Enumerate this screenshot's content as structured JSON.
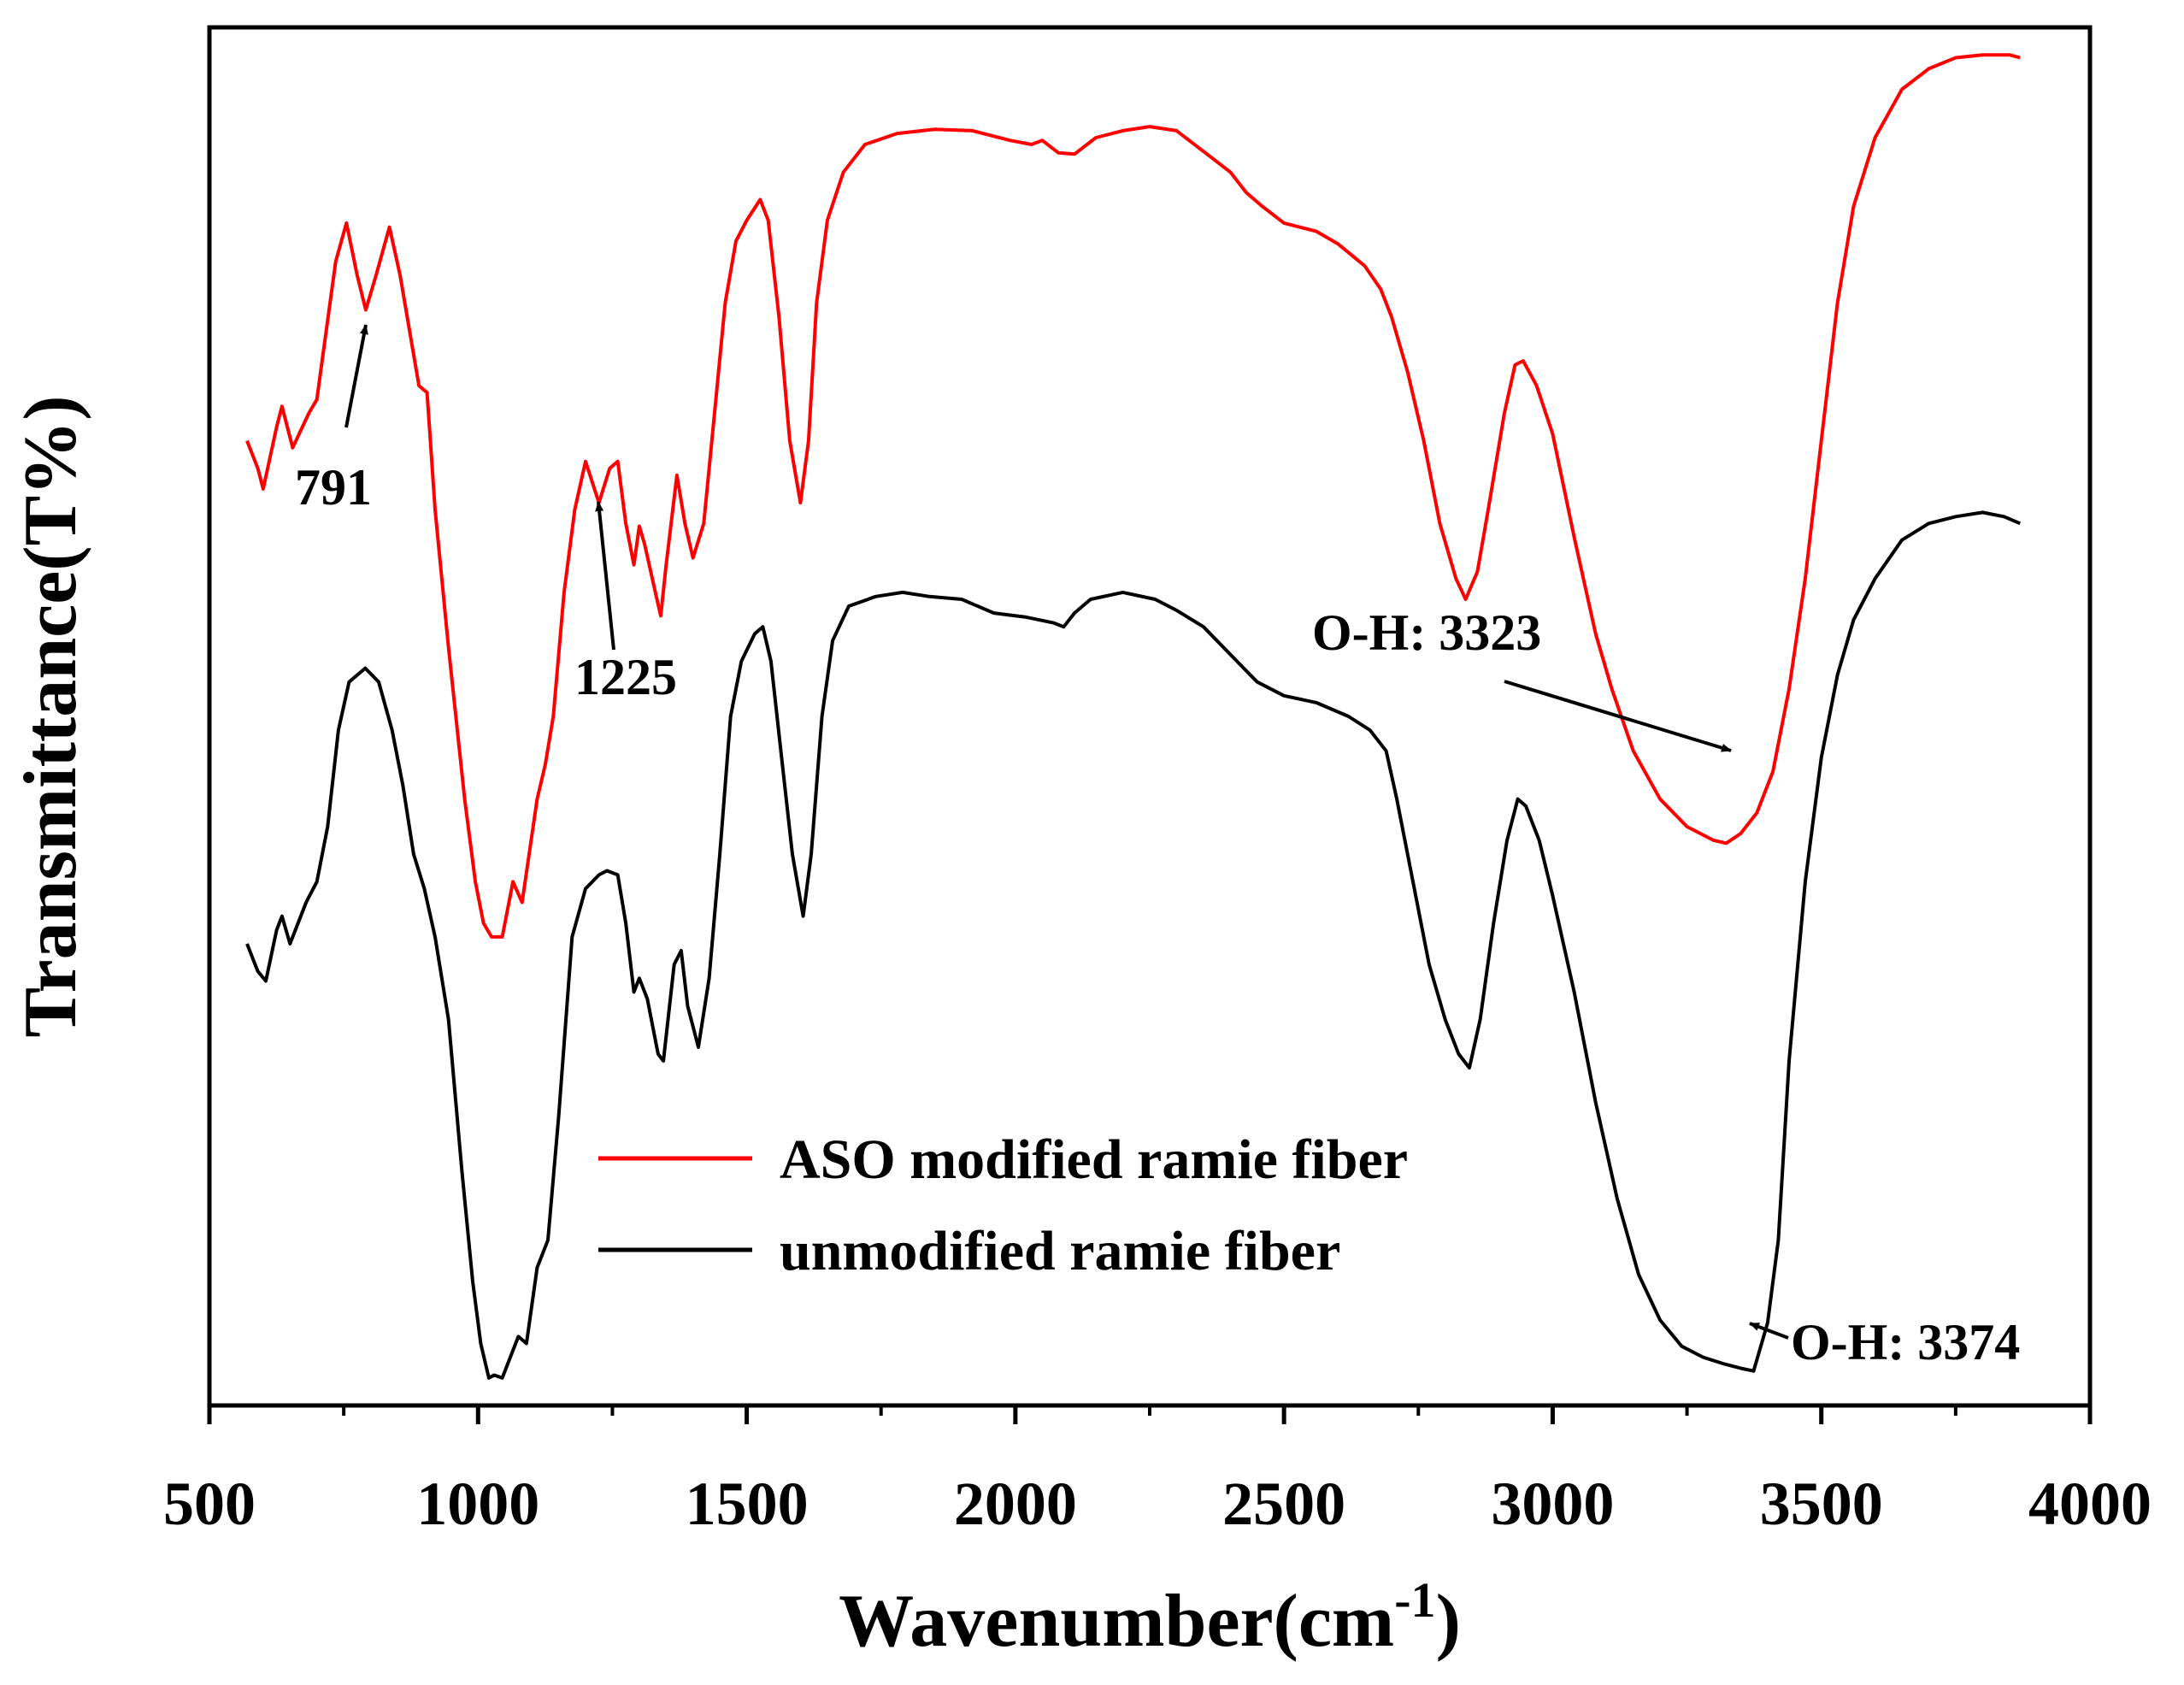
{
  "chart_data": {
    "type": "line",
    "title": "",
    "xlabel": "Wavenumber(cm",
    "xlabel_sup": "-1",
    "xlabel_close": ")",
    "ylabel": "Transmittance(T%)",
    "xlim": [
      500,
      4000
    ],
    "ylim": [
      0,
      100
    ],
    "y_ticks_visible": false,
    "grid": false,
    "x_ticks": [
      500,
      1000,
      1500,
      2000,
      2500,
      3000,
      3500,
      4000
    ],
    "x_tick_labels": [
      "500",
      "1000",
      "1500",
      "2000",
      "2500",
      "3000",
      "3500",
      "4000"
    ],
    "legend": {
      "placement": "lower-center"
    },
    "series": [
      {
        "name": "ASO modified ramie fiber",
        "color": "#ff0000",
        "points": [
          [
            570,
            70
          ],
          [
            590,
            68
          ],
          [
            600,
            66.5
          ],
          [
            625,
            71
          ],
          [
            635,
            72.5
          ],
          [
            655,
            69.5
          ],
          [
            685,
            72
          ],
          [
            700,
            73
          ],
          [
            735,
            83
          ],
          [
            755,
            85.8
          ],
          [
            775,
            82
          ],
          [
            791,
            79.5
          ],
          [
            810,
            82
          ],
          [
            835,
            85.5
          ],
          [
            855,
            82
          ],
          [
            890,
            74
          ],
          [
            905,
            73.5
          ],
          [
            920,
            65
          ],
          [
            945,
            55
          ],
          [
            975,
            44
          ],
          [
            995,
            38
          ],
          [
            1010,
            35
          ],
          [
            1025,
            34
          ],
          [
            1045,
            34
          ],
          [
            1065,
            38
          ],
          [
            1082,
            36.5
          ],
          [
            1110,
            44
          ],
          [
            1125,
            46.5
          ],
          [
            1140,
            50
          ],
          [
            1160,
            59
          ],
          [
            1180,
            65
          ],
          [
            1200,
            68.5
          ],
          [
            1225,
            65.5
          ],
          [
            1245,
            68
          ],
          [
            1260,
            68.5
          ],
          [
            1275,
            64
          ],
          [
            1290,
            61
          ],
          [
            1300,
            63.8
          ],
          [
            1310,
            62.5
          ],
          [
            1330,
            59
          ],
          [
            1340,
            57.3
          ],
          [
            1350,
            61
          ],
          [
            1370,
            67.5
          ],
          [
            1385,
            64
          ],
          [
            1400,
            61.5
          ],
          [
            1420,
            64
          ],
          [
            1440,
            72
          ],
          [
            1460,
            80
          ],
          [
            1480,
            84.5
          ],
          [
            1500,
            86
          ],
          [
            1525,
            87.5
          ],
          [
            1540,
            86
          ],
          [
            1560,
            79
          ],
          [
            1580,
            70
          ],
          [
            1600,
            65.5
          ],
          [
            1615,
            70
          ],
          [
            1630,
            80
          ],
          [
            1650,
            86
          ],
          [
            1680,
            89.5
          ],
          [
            1720,
            91.5
          ],
          [
            1780,
            92.3
          ],
          [
            1850,
            92.6
          ],
          [
            1920,
            92.5
          ],
          [
            1990,
            91.8
          ],
          [
            2030,
            91.5
          ],
          [
            2050,
            91.8
          ],
          [
            2080,
            90.9
          ],
          [
            2110,
            90.8
          ],
          [
            2150,
            92
          ],
          [
            2200,
            92.5
          ],
          [
            2250,
            92.8
          ],
          [
            2300,
            92.5
          ],
          [
            2350,
            91
          ],
          [
            2400,
            89.5
          ],
          [
            2430,
            88
          ],
          [
            2460,
            87
          ],
          [
            2500,
            85.8
          ],
          [
            2560,
            85.2
          ],
          [
            2600,
            84.3
          ],
          [
            2650,
            82.7
          ],
          [
            2680,
            81
          ],
          [
            2700,
            79
          ],
          [
            2730,
            75
          ],
          [
            2760,
            70
          ],
          [
            2790,
            64
          ],
          [
            2820,
            60
          ],
          [
            2838,
            58.5
          ],
          [
            2860,
            60.5
          ],
          [
            2880,
            65
          ],
          [
            2910,
            72
          ],
          [
            2930,
            75.5
          ],
          [
            2945,
            75.8
          ],
          [
            2970,
            74
          ],
          [
            3000,
            70.5
          ],
          [
            3040,
            63
          ],
          [
            3080,
            56
          ],
          [
            3110,
            52
          ],
          [
            3150,
            47.5
          ],
          [
            3200,
            44
          ],
          [
            3250,
            42
          ],
          [
            3300,
            41
          ],
          [
            3323,
            40.8
          ],
          [
            3350,
            41.5
          ],
          [
            3380,
            43
          ],
          [
            3410,
            46
          ],
          [
            3440,
            52
          ],
          [
            3470,
            60
          ],
          [
            3500,
            70
          ],
          [
            3530,
            80
          ],
          [
            3560,
            87
          ],
          [
            3600,
            92
          ],
          [
            3650,
            95.5
          ],
          [
            3700,
            97
          ],
          [
            3750,
            97.8
          ],
          [
            3800,
            98
          ],
          [
            3850,
            98
          ],
          [
            3870,
            97.8
          ]
        ]
      },
      {
        "name": "unmodified ramie fiber",
        "color": "#000000",
        "points": [
          [
            570,
            33.5
          ],
          [
            590,
            31.5
          ],
          [
            605,
            30.8
          ],
          [
            625,
            34.5
          ],
          [
            635,
            35.5
          ],
          [
            650,
            33.5
          ],
          [
            680,
            36.5
          ],
          [
            700,
            38
          ],
          [
            720,
            42
          ],
          [
            740,
            49
          ],
          [
            760,
            52.5
          ],
          [
            790,
            53.5
          ],
          [
            815,
            52.5
          ],
          [
            840,
            49
          ],
          [
            860,
            45
          ],
          [
            880,
            40
          ],
          [
            900,
            37.5
          ],
          [
            920,
            34
          ],
          [
            945,
            28
          ],
          [
            970,
            17
          ],
          [
            990,
            9
          ],
          [
            1005,
            4.5
          ],
          [
            1020,
            2
          ],
          [
            1030,
            2.2
          ],
          [
            1045,
            2
          ],
          [
            1060,
            3.5
          ],
          [
            1075,
            5
          ],
          [
            1090,
            4.5
          ],
          [
            1110,
            10
          ],
          [
            1130,
            12
          ],
          [
            1150,
            21
          ],
          [
            1175,
            34
          ],
          [
            1200,
            37.5
          ],
          [
            1225,
            38.5
          ],
          [
            1240,
            38.8
          ],
          [
            1260,
            38.5
          ],
          [
            1275,
            35
          ],
          [
            1290,
            30
          ],
          [
            1300,
            31
          ],
          [
            1315,
            29.5
          ],
          [
            1335,
            25.5
          ],
          [
            1345,
            25
          ],
          [
            1365,
            32
          ],
          [
            1378,
            33
          ],
          [
            1390,
            29
          ],
          [
            1410,
            26
          ],
          [
            1430,
            31
          ],
          [
            1450,
            40
          ],
          [
            1470,
            50
          ],
          [
            1490,
            54
          ],
          [
            1515,
            56
          ],
          [
            1530,
            56.5
          ],
          [
            1545,
            54
          ],
          [
            1565,
            47
          ],
          [
            1585,
            40
          ],
          [
            1605,
            35.5
          ],
          [
            1620,
            40
          ],
          [
            1640,
            50
          ],
          [
            1660,
            55.5
          ],
          [
            1690,
            58
          ],
          [
            1740,
            58.7
          ],
          [
            1790,
            59
          ],
          [
            1840,
            58.7
          ],
          [
            1900,
            58.5
          ],
          [
            1960,
            57.5
          ],
          [
            2020,
            57.2
          ],
          [
            2070,
            56.8
          ],
          [
            2090,
            56.5
          ],
          [
            2110,
            57.5
          ],
          [
            2140,
            58.5
          ],
          [
            2200,
            59
          ],
          [
            2260,
            58.5
          ],
          [
            2300,
            57.7
          ],
          [
            2350,
            56.5
          ],
          [
            2400,
            54.5
          ],
          [
            2450,
            52.5
          ],
          [
            2500,
            51.5
          ],
          [
            2560,
            51
          ],
          [
            2620,
            50
          ],
          [
            2660,
            49
          ],
          [
            2690,
            47.5
          ],
          [
            2710,
            44
          ],
          [
            2740,
            38
          ],
          [
            2770,
            32
          ],
          [
            2800,
            28
          ],
          [
            2825,
            25.5
          ],
          [
            2845,
            24.5
          ],
          [
            2865,
            28
          ],
          [
            2890,
            35
          ],
          [
            2915,
            41
          ],
          [
            2935,
            44
          ],
          [
            2950,
            43.5
          ],
          [
            2975,
            41
          ],
          [
            3000,
            37
          ],
          [
            3040,
            30
          ],
          [
            3080,
            22
          ],
          [
            3120,
            15
          ],
          [
            3160,
            9.5
          ],
          [
            3200,
            6.2
          ],
          [
            3240,
            4.3
          ],
          [
            3280,
            3.5
          ],
          [
            3320,
            3
          ],
          [
            3350,
            2.7
          ],
          [
            3374,
            2.5
          ],
          [
            3400,
            6
          ],
          [
            3420,
            12
          ],
          [
            3440,
            25
          ],
          [
            3470,
            38
          ],
          [
            3500,
            47
          ],
          [
            3530,
            53
          ],
          [
            3560,
            57
          ],
          [
            3600,
            60
          ],
          [
            3650,
            62.8
          ],
          [
            3700,
            64
          ],
          [
            3750,
            64.5
          ],
          [
            3800,
            64.8
          ],
          [
            3840,
            64.5
          ],
          [
            3870,
            64
          ]
        ]
      }
    ],
    "annotations": [
      {
        "text": "791",
        "x": 791,
        "y": 79.5,
        "series": 0
      },
      {
        "text": "1225",
        "x": 1225,
        "y": 65.5,
        "series": 0
      },
      {
        "text": "O-H: 3323",
        "x": 3323,
        "y": 40.8,
        "series": 0
      },
      {
        "text": "O-H: 3374",
        "x": 3374,
        "y": 2.5,
        "series": 1
      }
    ]
  }
}
